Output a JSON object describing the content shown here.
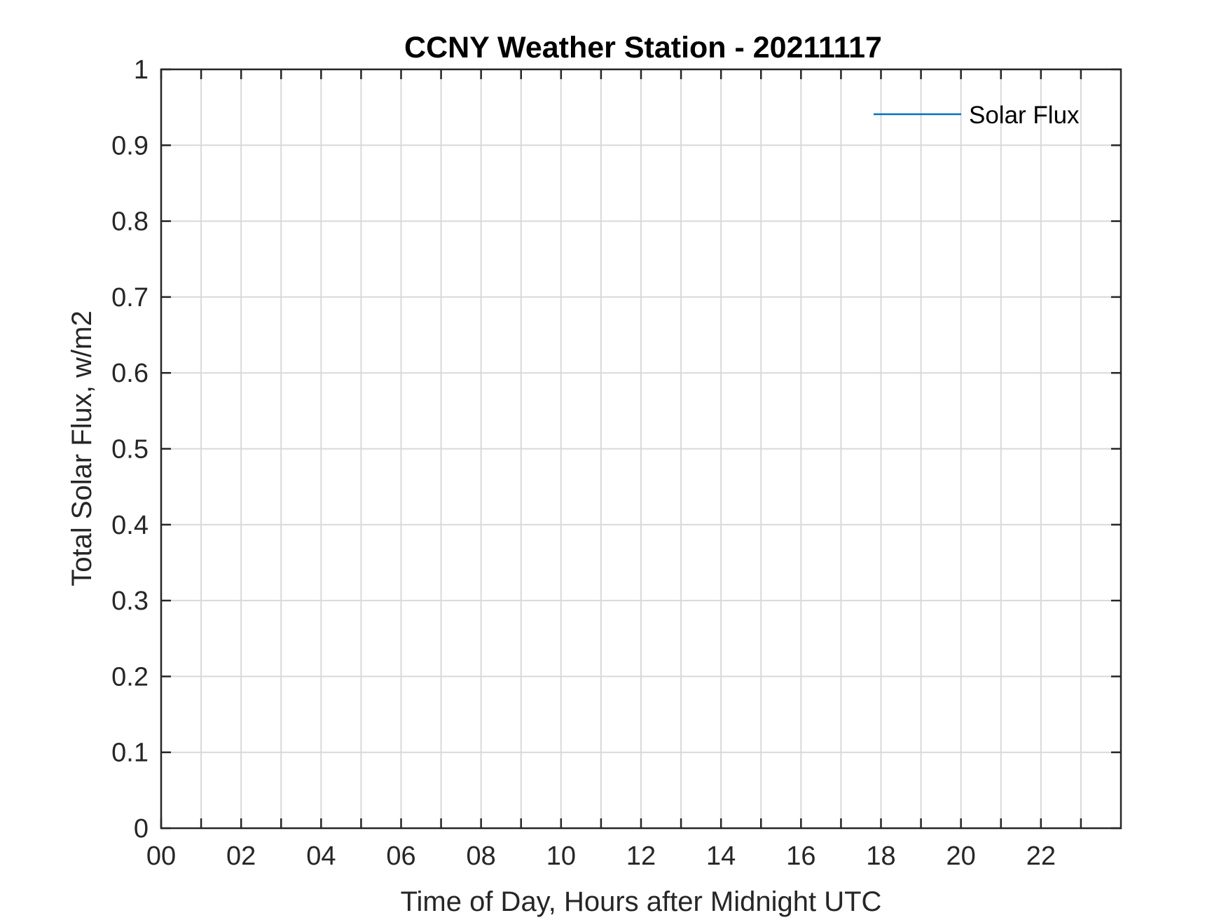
{
  "chart_data": {
    "type": "line",
    "title": "CCNY Weather Station - 20211117",
    "xlabel": "Time of Day, Hours after Midnight UTC",
    "ylabel": "Total Solar Flux, w/m2",
    "xlim": [
      0,
      24
    ],
    "ylim": [
      0,
      1
    ],
    "x_ticks": [
      0,
      1,
      2,
      3,
      4,
      5,
      6,
      7,
      8,
      9,
      10,
      11,
      12,
      13,
      14,
      15,
      16,
      17,
      18,
      19,
      20,
      21,
      22,
      23
    ],
    "x_tick_labels": [
      "00",
      "02",
      "04",
      "06",
      "08",
      "10",
      "12",
      "14",
      "16",
      "18",
      "20",
      "22"
    ],
    "x_tick_label_values": [
      0,
      2,
      4,
      6,
      8,
      10,
      12,
      14,
      16,
      18,
      20,
      22
    ],
    "y_ticks": [
      0,
      0.1,
      0.2,
      0.3,
      0.4,
      0.5,
      0.6,
      0.7,
      0.8,
      0.9,
      1
    ],
    "y_tick_labels": [
      "0",
      "0.1",
      "0.2",
      "0.3",
      "0.4",
      "0.5",
      "0.6",
      "0.7",
      "0.8",
      "0.9",
      "1"
    ],
    "grid": true,
    "legend_position": "top-right",
    "series": [
      {
        "name": "Solar Flux",
        "color": "#0072BD",
        "x": [],
        "values": []
      }
    ]
  }
}
